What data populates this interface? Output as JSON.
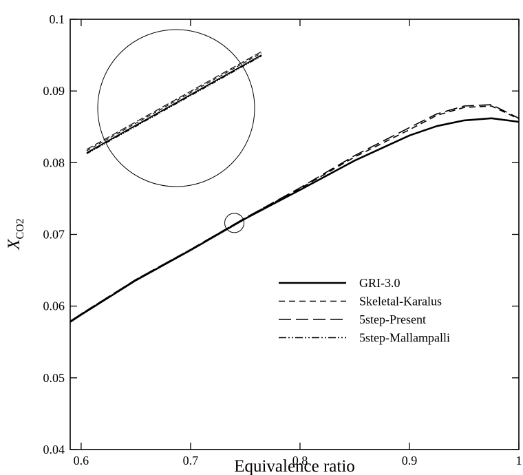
{
  "chart_data": {
    "type": "line",
    "xlabel": "Equivalence ratio",
    "ylabel": {
      "main": "X",
      "sub": "CO2"
    },
    "xlim": [
      0.59,
      1.0
    ],
    "ylim": [
      0.04,
      0.1
    ],
    "xticks": [
      0.6,
      0.7,
      0.8,
      0.9,
      1.0
    ],
    "xtick_labels": [
      "0.6",
      "0.7",
      "0.8",
      "0.9",
      "1"
    ],
    "yticks": [
      0.04,
      0.05,
      0.06,
      0.07,
      0.08,
      0.09,
      0.1
    ],
    "ytick_labels": [
      "0.04",
      "0.05",
      "0.06",
      "0.07",
      "0.08",
      "0.09",
      "0.1"
    ],
    "grid": false,
    "legend_position": "lower-right",
    "series": [
      {
        "name": "GRI-3.0",
        "style": "solid",
        "x": [
          0.59,
          0.6,
          0.65,
          0.7,
          0.75,
          0.8,
          0.85,
          0.9,
          0.925,
          0.95,
          0.975,
          1.0
        ],
        "y": [
          0.0578,
          0.0588,
          0.0636,
          0.0678,
          0.0722,
          0.0762,
          0.0803,
          0.0838,
          0.0851,
          0.0859,
          0.0862,
          0.0857
        ]
      },
      {
        "name": "Skeletal-Karalus",
        "style": "short-dash",
        "x": [
          0.59,
          0.6,
          0.65,
          0.7,
          0.75,
          0.8,
          0.85,
          0.9,
          0.925,
          0.95,
          0.975,
          1.0
        ],
        "y": [
          0.0579,
          0.0589,
          0.0637,
          0.0679,
          0.0723,
          0.0764,
          0.0808,
          0.0846,
          0.0866,
          0.0877,
          0.0879,
          0.0861
        ]
      },
      {
        "name": "5step-Present",
        "style": "long-dash",
        "x": [
          0.59,
          0.6,
          0.65,
          0.7,
          0.75,
          0.8,
          0.85,
          0.9,
          0.925,
          0.95,
          0.975,
          1.0
        ],
        "y": [
          0.0579,
          0.0589,
          0.0637,
          0.0679,
          0.0723,
          0.0765,
          0.081,
          0.0849,
          0.0868,
          0.0879,
          0.0881,
          0.0862
        ]
      },
      {
        "name": "5step-Mallampalli",
        "style": "dash-dot-dot",
        "x": [
          0.59,
          0.6,
          0.65,
          0.7,
          0.75,
          0.8,
          0.85,
          0.9,
          0.925,
          0.95,
          0.975,
          1.0
        ],
        "y": [
          0.0578,
          0.0588,
          0.0636,
          0.0678,
          0.0722,
          0.0762,
          0.0803,
          0.0838,
          0.0851,
          0.0859,
          0.0862,
          0.0857
        ]
      }
    ],
    "inset": {
      "kind": "zoom-circle",
      "target": {
        "x": 0.74,
        "y": 0.0716
      }
    }
  }
}
